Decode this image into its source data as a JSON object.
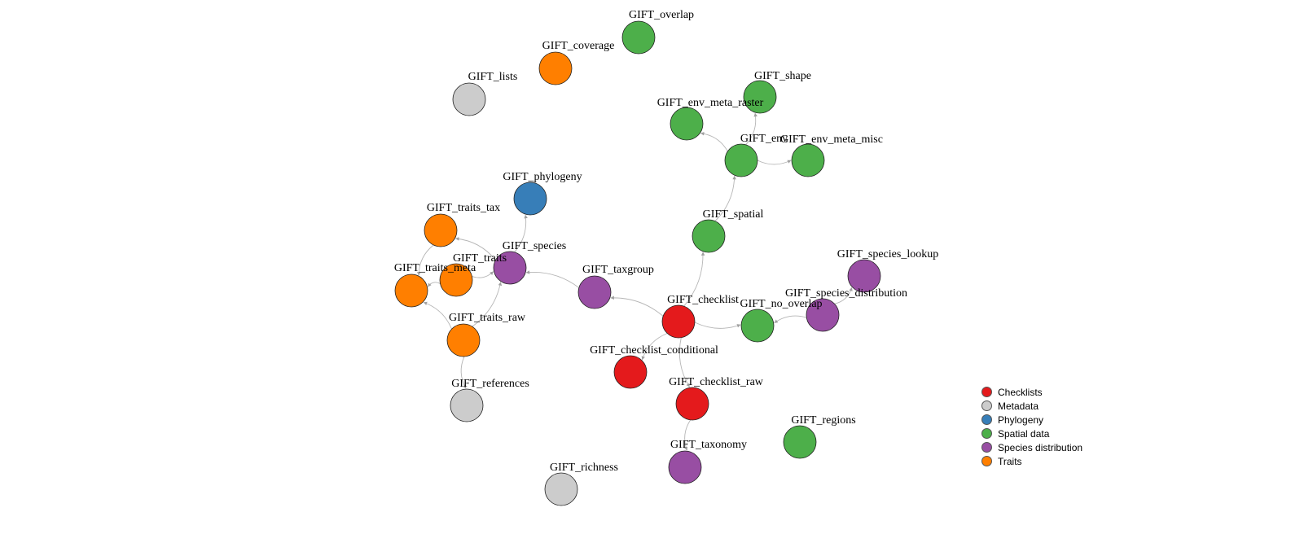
{
  "colors": {
    "checklists": "#E41A1C",
    "metadata": "#CCCCCC",
    "phylogeny": "#377EB8",
    "spatial": "#4DAF4A",
    "species_distribution": "#984EA3",
    "traits": "#FF7F00",
    "edge": "#B5B5B5"
  },
  "nodes": [
    {
      "id": "GIFT_overlap",
      "label": "GIFT_overlap",
      "group": "spatial"
    },
    {
      "id": "GIFT_coverage",
      "label": "GIFT_coverage",
      "group": "traits"
    },
    {
      "id": "GIFT_lists",
      "label": "GIFT_lists",
      "group": "metadata"
    },
    {
      "id": "GIFT_shape",
      "label": "GIFT_shape",
      "group": "spatial"
    },
    {
      "id": "GIFT_env_meta_raster",
      "label": "GIFT_env_meta_raster",
      "group": "spatial"
    },
    {
      "id": "GIFT_env",
      "label": "GIFT_env",
      "group": "spatial"
    },
    {
      "id": "GIFT_env_meta_misc",
      "label": "GIFT_env_meta_misc",
      "group": "spatial"
    },
    {
      "id": "GIFT_phylogeny",
      "label": "GIFT_phylogeny",
      "group": "phylogeny"
    },
    {
      "id": "GIFT_traits_tax",
      "label": "GIFT_traits_tax",
      "group": "traits"
    },
    {
      "id": "GIFT_spatial",
      "label": "GIFT_spatial",
      "group": "spatial"
    },
    {
      "id": "GIFT_species",
      "label": "GIFT_species",
      "group": "species_distribution"
    },
    {
      "id": "GIFT_traits",
      "label": "GIFT_traits",
      "group": "traits"
    },
    {
      "id": "GIFT_traits_meta",
      "label": "GIFT_traits_meta",
      "group": "traits"
    },
    {
      "id": "GIFT_species_lookup",
      "label": "GIFT_species_lookup",
      "group": "species_distribution"
    },
    {
      "id": "GIFT_taxgroup",
      "label": "GIFT_taxgroup",
      "group": "species_distribution"
    },
    {
      "id": "GIFT_species_distribution",
      "label": "GIFT_species_distribution",
      "group": "species_distribution"
    },
    {
      "id": "GIFT_checklist",
      "label": "GIFT_checklist",
      "group": "checklists"
    },
    {
      "id": "GIFT_no_overlap",
      "label": "GIFT_no_overlap",
      "group": "spatial"
    },
    {
      "id": "GIFT_traits_raw",
      "label": "GIFT_traits_raw",
      "group": "traits"
    },
    {
      "id": "GIFT_checklist_conditional",
      "label": "GIFT_checklist_conditional",
      "group": "checklists"
    },
    {
      "id": "GIFT_references",
      "label": "GIFT_references",
      "group": "metadata"
    },
    {
      "id": "GIFT_checklist_raw",
      "label": "GIFT_checklist_raw",
      "group": "checklists"
    },
    {
      "id": "GIFT_regions",
      "label": "GIFT_regions",
      "group": "spatial"
    },
    {
      "id": "GIFT_taxonomy",
      "label": "GIFT_taxonomy",
      "group": "species_distribution"
    },
    {
      "id": "GIFT_richness",
      "label": "GIFT_richness",
      "group": "metadata"
    }
  ],
  "edges": [
    {
      "from": "GIFT_env",
      "to": "GIFT_shape"
    },
    {
      "from": "GIFT_env",
      "to": "GIFT_env_meta_raster"
    },
    {
      "from": "GIFT_env",
      "to": "GIFT_env_meta_misc"
    },
    {
      "from": "GIFT_spatial",
      "to": "GIFT_env"
    },
    {
      "from": "GIFT_checklist",
      "to": "GIFT_spatial"
    },
    {
      "from": "GIFT_checklist",
      "to": "GIFT_taxgroup"
    },
    {
      "from": "GIFT_taxgroup",
      "to": "GIFT_species"
    },
    {
      "from": "GIFT_species",
      "to": "GIFT_phylogeny"
    },
    {
      "from": "GIFT_species",
      "to": "GIFT_traits_tax"
    },
    {
      "from": "GIFT_traits",
      "to": "GIFT_species"
    },
    {
      "from": "GIFT_traits",
      "to": "GIFT_traits_meta"
    },
    {
      "from": "GIFT_traits_tax",
      "to": "GIFT_traits_meta"
    },
    {
      "from": "GIFT_traits_raw",
      "to": "GIFT_traits_meta"
    },
    {
      "from": "GIFT_traits_raw",
      "to": "GIFT_species"
    },
    {
      "from": "GIFT_traits_raw",
      "to": "GIFT_references"
    },
    {
      "from": "GIFT_checklist",
      "to": "GIFT_no_overlap"
    },
    {
      "from": "GIFT_species_distribution",
      "to": "GIFT_no_overlap"
    },
    {
      "from": "GIFT_species_distribution",
      "to": "GIFT_species_lookup"
    },
    {
      "from": "GIFT_checklist",
      "to": "GIFT_checklist_conditional"
    },
    {
      "from": "GIFT_checklist",
      "to": "GIFT_checklist_raw"
    },
    {
      "from": "GIFT_checklist_raw",
      "to": "GIFT_taxonomy"
    }
  ],
  "legend": [
    {
      "label": "Checklists",
      "group": "checklists"
    },
    {
      "label": "Metadata",
      "group": "metadata"
    },
    {
      "label": "Phylogeny",
      "group": "phylogeny"
    },
    {
      "label": "Spatial data",
      "group": "spatial"
    },
    {
      "label": "Species distribution",
      "group": "species_distribution"
    },
    {
      "label": "Traits",
      "group": "traits"
    }
  ]
}
